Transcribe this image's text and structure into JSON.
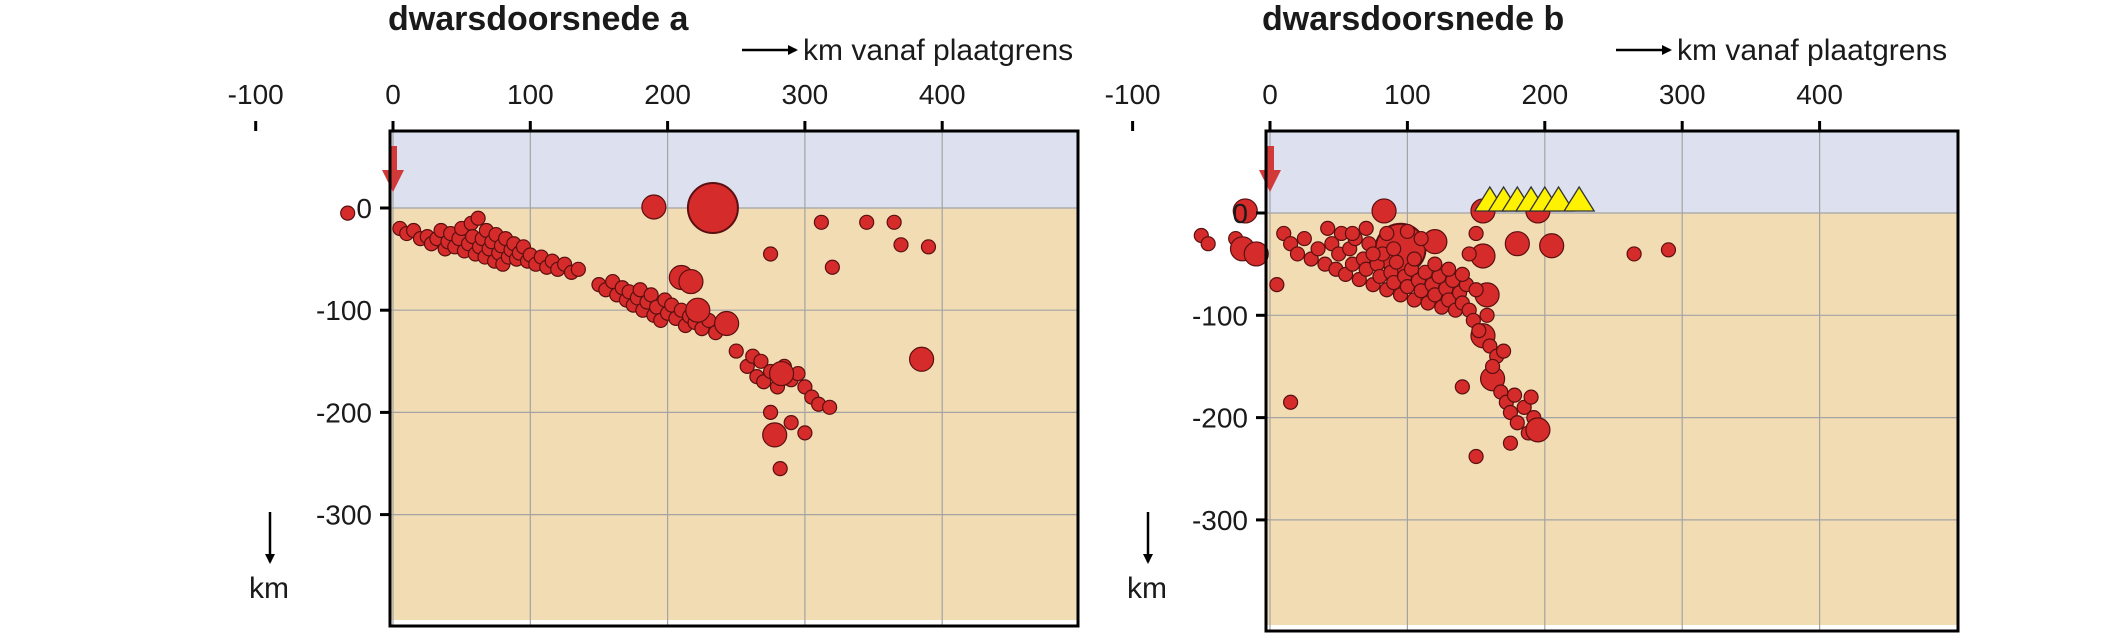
{
  "colors": {
    "air": "#dde0ef",
    "ground": "#f2dcb4",
    "quake": "#d52b2b",
    "quake_stroke": "#5a1010",
    "arrow": "#d23a3a",
    "volcano": "#fff200",
    "grid": "#a3a3a3",
    "frame": "#000000"
  },
  "chart_data": [
    {
      "type": "scatter",
      "title": "dwarsdoorsnede a",
      "xlabel": "km vanaf plaatgrens",
      "ylabel": "km",
      "xlim": [
        -100,
        400
      ],
      "ylim": [
        -300,
        56
      ],
      "xticks": [
        "-100",
        "0",
        "100",
        "200",
        "300",
        "400"
      ],
      "yticks": [
        "0",
        "-100",
        "-200",
        "-300"
      ],
      "plate_boundary_x": 0,
      "earthquakes": [
        {
          "x": -33,
          "y": -5,
          "size": "small"
        },
        {
          "x": 190,
          "y": 1,
          "size": "medium"
        },
        {
          "x": 233,
          "y": 0,
          "size": "large"
        },
        {
          "x": 5,
          "y": -20
        },
        {
          "x": 10,
          "y": -25
        },
        {
          "x": 15,
          "y": -22
        },
        {
          "x": 20,
          "y": -30
        },
        {
          "x": 25,
          "y": -28
        },
        {
          "x": 28,
          "y": -35
        },
        {
          "x": 32,
          "y": -30
        },
        {
          "x": 35,
          "y": -22
        },
        {
          "x": 38,
          "y": -40
        },
        {
          "x": 40,
          "y": -33
        },
        {
          "x": 42,
          "y": -25
        },
        {
          "x": 45,
          "y": -38
        },
        {
          "x": 48,
          "y": -30
        },
        {
          "x": 50,
          "y": -20
        },
        {
          "x": 52,
          "y": -42
        },
        {
          "x": 55,
          "y": -35
        },
        {
          "x": 57,
          "y": -15
        },
        {
          "x": 58,
          "y": -28
        },
        {
          "x": 60,
          "y": -45
        },
        {
          "x": 62,
          "y": -10
        },
        {
          "x": 63,
          "y": -38
        },
        {
          "x": 65,
          "y": -30
        },
        {
          "x": 67,
          "y": -48
        },
        {
          "x": 68,
          "y": -22
        },
        {
          "x": 70,
          "y": -40
        },
        {
          "x": 72,
          "y": -33
        },
        {
          "x": 74,
          "y": -52
        },
        {
          "x": 75,
          "y": -26
        },
        {
          "x": 77,
          "y": -44
        },
        {
          "x": 79,
          "y": -37
        },
        {
          "x": 80,
          "y": -55
        },
        {
          "x": 82,
          "y": -30
        },
        {
          "x": 84,
          "y": -48
        },
        {
          "x": 86,
          "y": -41
        },
        {
          "x": 88,
          "y": -35
        },
        {
          "x": 90,
          "y": -50
        },
        {
          "x": 92,
          "y": -44
        },
        {
          "x": 95,
          "y": -38
        },
        {
          "x": 98,
          "y": -52
        },
        {
          "x": 100,
          "y": -46
        },
        {
          "x": 104,
          "y": -55
        },
        {
          "x": 108,
          "y": -48
        },
        {
          "x": 112,
          "y": -58
        },
        {
          "x": 116,
          "y": -52
        },
        {
          "x": 120,
          "y": -60
        },
        {
          "x": 125,
          "y": -55
        },
        {
          "x": 130,
          "y": -63
        },
        {
          "x": 135,
          "y": -60
        },
        {
          "x": 150,
          "y": -75
        },
        {
          "x": 155,
          "y": -80
        },
        {
          "x": 160,
          "y": -72
        },
        {
          "x": 163,
          "y": -85
        },
        {
          "x": 167,
          "y": -78
        },
        {
          "x": 170,
          "y": -90
        },
        {
          "x": 172,
          "y": -82
        },
        {
          "x": 175,
          "y": -95
        },
        {
          "x": 178,
          "y": -88
        },
        {
          "x": 180,
          "y": -80
        },
        {
          "x": 182,
          "y": -100
        },
        {
          "x": 185,
          "y": -92
        },
        {
          "x": 188,
          "y": -85
        },
        {
          "x": 190,
          "y": -105
        },
        {
          "x": 192,
          "y": -97
        },
        {
          "x": 195,
          "y": -110
        },
        {
          "x": 198,
          "y": -90
        },
        {
          "x": 200,
          "y": -103
        },
        {
          "x": 203,
          "y": -95
        },
        {
          "x": 206,
          "y": -108
        },
        {
          "x": 210,
          "y": -100
        },
        {
          "x": 213,
          "y": -115
        },
        {
          "x": 216,
          "y": -106
        },
        {
          "x": 220,
          "y": -112
        },
        {
          "x": 225,
          "y": -118
        },
        {
          "x": 230,
          "y": -110
        },
        {
          "x": 235,
          "y": -122
        },
        {
          "x": 210,
          "y": -68,
          "size": "medium"
        },
        {
          "x": 217,
          "y": -72,
          "size": "medium"
        },
        {
          "x": 222,
          "y": -100,
          "size": "medium"
        },
        {
          "x": 243,
          "y": -113,
          "size": "medium"
        },
        {
          "x": 250,
          "y": -140
        },
        {
          "x": 258,
          "y": -155
        },
        {
          "x": 262,
          "y": -145
        },
        {
          "x": 265,
          "y": -165
        },
        {
          "x": 268,
          "y": -150
        },
        {
          "x": 270,
          "y": -170
        },
        {
          "x": 275,
          "y": -160
        },
        {
          "x": 280,
          "y": -175
        },
        {
          "x": 285,
          "y": -155
        },
        {
          "x": 290,
          "y": -168
        },
        {
          "x": 295,
          "y": -162
        },
        {
          "x": 300,
          "y": -175
        },
        {
          "x": 305,
          "y": -185
        },
        {
          "x": 310,
          "y": -192
        },
        {
          "x": 318,
          "y": -195
        },
        {
          "x": 283,
          "y": -162,
          "size": "medium"
        },
        {
          "x": 278,
          "y": -222,
          "size": "medium"
        },
        {
          "x": 275,
          "y": -200
        },
        {
          "x": 290,
          "y": -210
        },
        {
          "x": 300,
          "y": -220
        },
        {
          "x": 282,
          "y": -255
        },
        {
          "x": 275,
          "y": -45
        },
        {
          "x": 320,
          "y": -58
        },
        {
          "x": 312,
          "y": -14
        },
        {
          "x": 345,
          "y": -14
        },
        {
          "x": 365,
          "y": -14
        },
        {
          "x": 370,
          "y": -36
        },
        {
          "x": 390,
          "y": -38
        },
        {
          "x": 385,
          "y": -148,
          "size": "medium"
        }
      ]
    },
    {
      "type": "scatter",
      "title": "dwarsdoorsnede b",
      "xlabel": "km vanaf plaatgrens",
      "ylabel": "km",
      "xlim": [
        -100,
        400
      ],
      "ylim": [
        -300,
        56
      ],
      "xticks": [
        "-100",
        "0",
        "100",
        "200",
        "300",
        "400"
      ],
      "yticks": [
        "0",
        "-100",
        "-200",
        "-300"
      ],
      "plate_boundary_x": 0,
      "volcanoes_x": [
        160,
        170,
        180,
        190,
        200,
        210,
        225
      ],
      "earthquakes": [
        {
          "x": -18,
          "y": 2,
          "size": "medium"
        },
        {
          "x": 83,
          "y": 2,
          "size": "medium"
        },
        {
          "x": -50,
          "y": -22
        },
        {
          "x": -45,
          "y": -30
        },
        {
          "x": -25,
          "y": -25
        },
        {
          "x": -20,
          "y": -35,
          "size": "medium"
        },
        {
          "x": -10,
          "y": -40,
          "size": "medium"
        },
        {
          "x": 95,
          "y": -35,
          "size": "large"
        },
        {
          "x": 120,
          "y": -28,
          "size": "medium"
        },
        {
          "x": 155,
          "y": 2,
          "size": "medium"
        },
        {
          "x": 195,
          "y": 2,
          "size": "medium"
        },
        {
          "x": 180,
          "y": -30,
          "size": "medium"
        },
        {
          "x": 205,
          "y": -32,
          "size": "medium"
        },
        {
          "x": 155,
          "y": -42,
          "size": "medium"
        },
        {
          "x": 158,
          "y": -80,
          "size": "medium"
        },
        {
          "x": 155,
          "y": -120,
          "size": "medium"
        },
        {
          "x": 162,
          "y": -162,
          "size": "medium"
        },
        {
          "x": 10,
          "y": -20
        },
        {
          "x": 15,
          "y": -30
        },
        {
          "x": 20,
          "y": -40
        },
        {
          "x": 25,
          "y": -25
        },
        {
          "x": 30,
          "y": -45
        },
        {
          "x": 35,
          "y": -35
        },
        {
          "x": 40,
          "y": -50
        },
        {
          "x": 42,
          "y": -15
        },
        {
          "x": 45,
          "y": -30
        },
        {
          "x": 48,
          "y": -55
        },
        {
          "x": 50,
          "y": -40
        },
        {
          "x": 52,
          "y": -20
        },
        {
          "x": 55,
          "y": -60
        },
        {
          "x": 58,
          "y": -35
        },
        {
          "x": 60,
          "y": -50
        },
        {
          "x": 62,
          "y": -25
        },
        {
          "x": 65,
          "y": -65
        },
        {
          "x": 68,
          "y": -45
        },
        {
          "x": 70,
          "y": -55
        },
        {
          "x": 72,
          "y": -30
        },
        {
          "x": 75,
          "y": -70
        },
        {
          "x": 78,
          "y": -50
        },
        {
          "x": 80,
          "y": -62
        },
        {
          "x": 82,
          "y": -40
        },
        {
          "x": 85,
          "y": -75
        },
        {
          "x": 88,
          "y": -58
        },
        {
          "x": 90,
          "y": -68
        },
        {
          "x": 92,
          "y": -48
        },
        {
          "x": 95,
          "y": -80
        },
        {
          "x": 98,
          "y": -62
        },
        {
          "x": 100,
          "y": -72
        },
        {
          "x": 103,
          "y": -55
        },
        {
          "x": 105,
          "y": -85
        },
        {
          "x": 108,
          "y": -66
        },
        {
          "x": 110,
          "y": -76
        },
        {
          "x": 113,
          "y": -58
        },
        {
          "x": 115,
          "y": -88
        },
        {
          "x": 118,
          "y": -70
        },
        {
          "x": 120,
          "y": -80
        },
        {
          "x": 123,
          "y": -62
        },
        {
          "x": 125,
          "y": -92
        },
        {
          "x": 128,
          "y": -74
        },
        {
          "x": 130,
          "y": -85
        },
        {
          "x": 133,
          "y": -66
        },
        {
          "x": 135,
          "y": -95
        },
        {
          "x": 138,
          "y": -78
        },
        {
          "x": 140,
          "y": -88
        },
        {
          "x": 143,
          "y": -70
        },
        {
          "x": 145,
          "y": -95
        },
        {
          "x": 60,
          "y": -20
        },
        {
          "x": 70,
          "y": -15
        },
        {
          "x": 85,
          "y": -20
        },
        {
          "x": 100,
          "y": -18
        },
        {
          "x": 110,
          "y": -25
        },
        {
          "x": 75,
          "y": -40
        },
        {
          "x": 90,
          "y": -35
        },
        {
          "x": 105,
          "y": -45
        },
        {
          "x": 120,
          "y": -50
        },
        {
          "x": 130,
          "y": -55
        },
        {
          "x": 140,
          "y": -60
        },
        {
          "x": 150,
          "y": -75
        },
        {
          "x": 145,
          "y": -40
        },
        {
          "x": 150,
          "y": -20
        },
        {
          "x": 148,
          "y": -105
        },
        {
          "x": 152,
          "y": -115
        },
        {
          "x": 158,
          "y": -100
        },
        {
          "x": 160,
          "y": -130
        },
        {
          "x": 165,
          "y": -140
        },
        {
          "x": 170,
          "y": -135
        },
        {
          "x": 162,
          "y": -150
        },
        {
          "x": 168,
          "y": -175
        },
        {
          "x": 172,
          "y": -185
        },
        {
          "x": 175,
          "y": -195
        },
        {
          "x": 178,
          "y": -178
        },
        {
          "x": 180,
          "y": -205
        },
        {
          "x": 185,
          "y": -190
        },
        {
          "x": 188,
          "y": -215
        },
        {
          "x": 190,
          "y": -180
        },
        {
          "x": 192,
          "y": -200
        },
        {
          "x": 175,
          "y": -225
        },
        {
          "x": 150,
          "y": -238
        },
        {
          "x": 140,
          "y": -170
        },
        {
          "x": 195,
          "y": -212,
          "size": "medium"
        },
        {
          "x": 15,
          "y": -185
        },
        {
          "x": 5,
          "y": -70
        },
        {
          "x": 265,
          "y": -40
        },
        {
          "x": 290,
          "y": -36
        }
      ]
    }
  ]
}
